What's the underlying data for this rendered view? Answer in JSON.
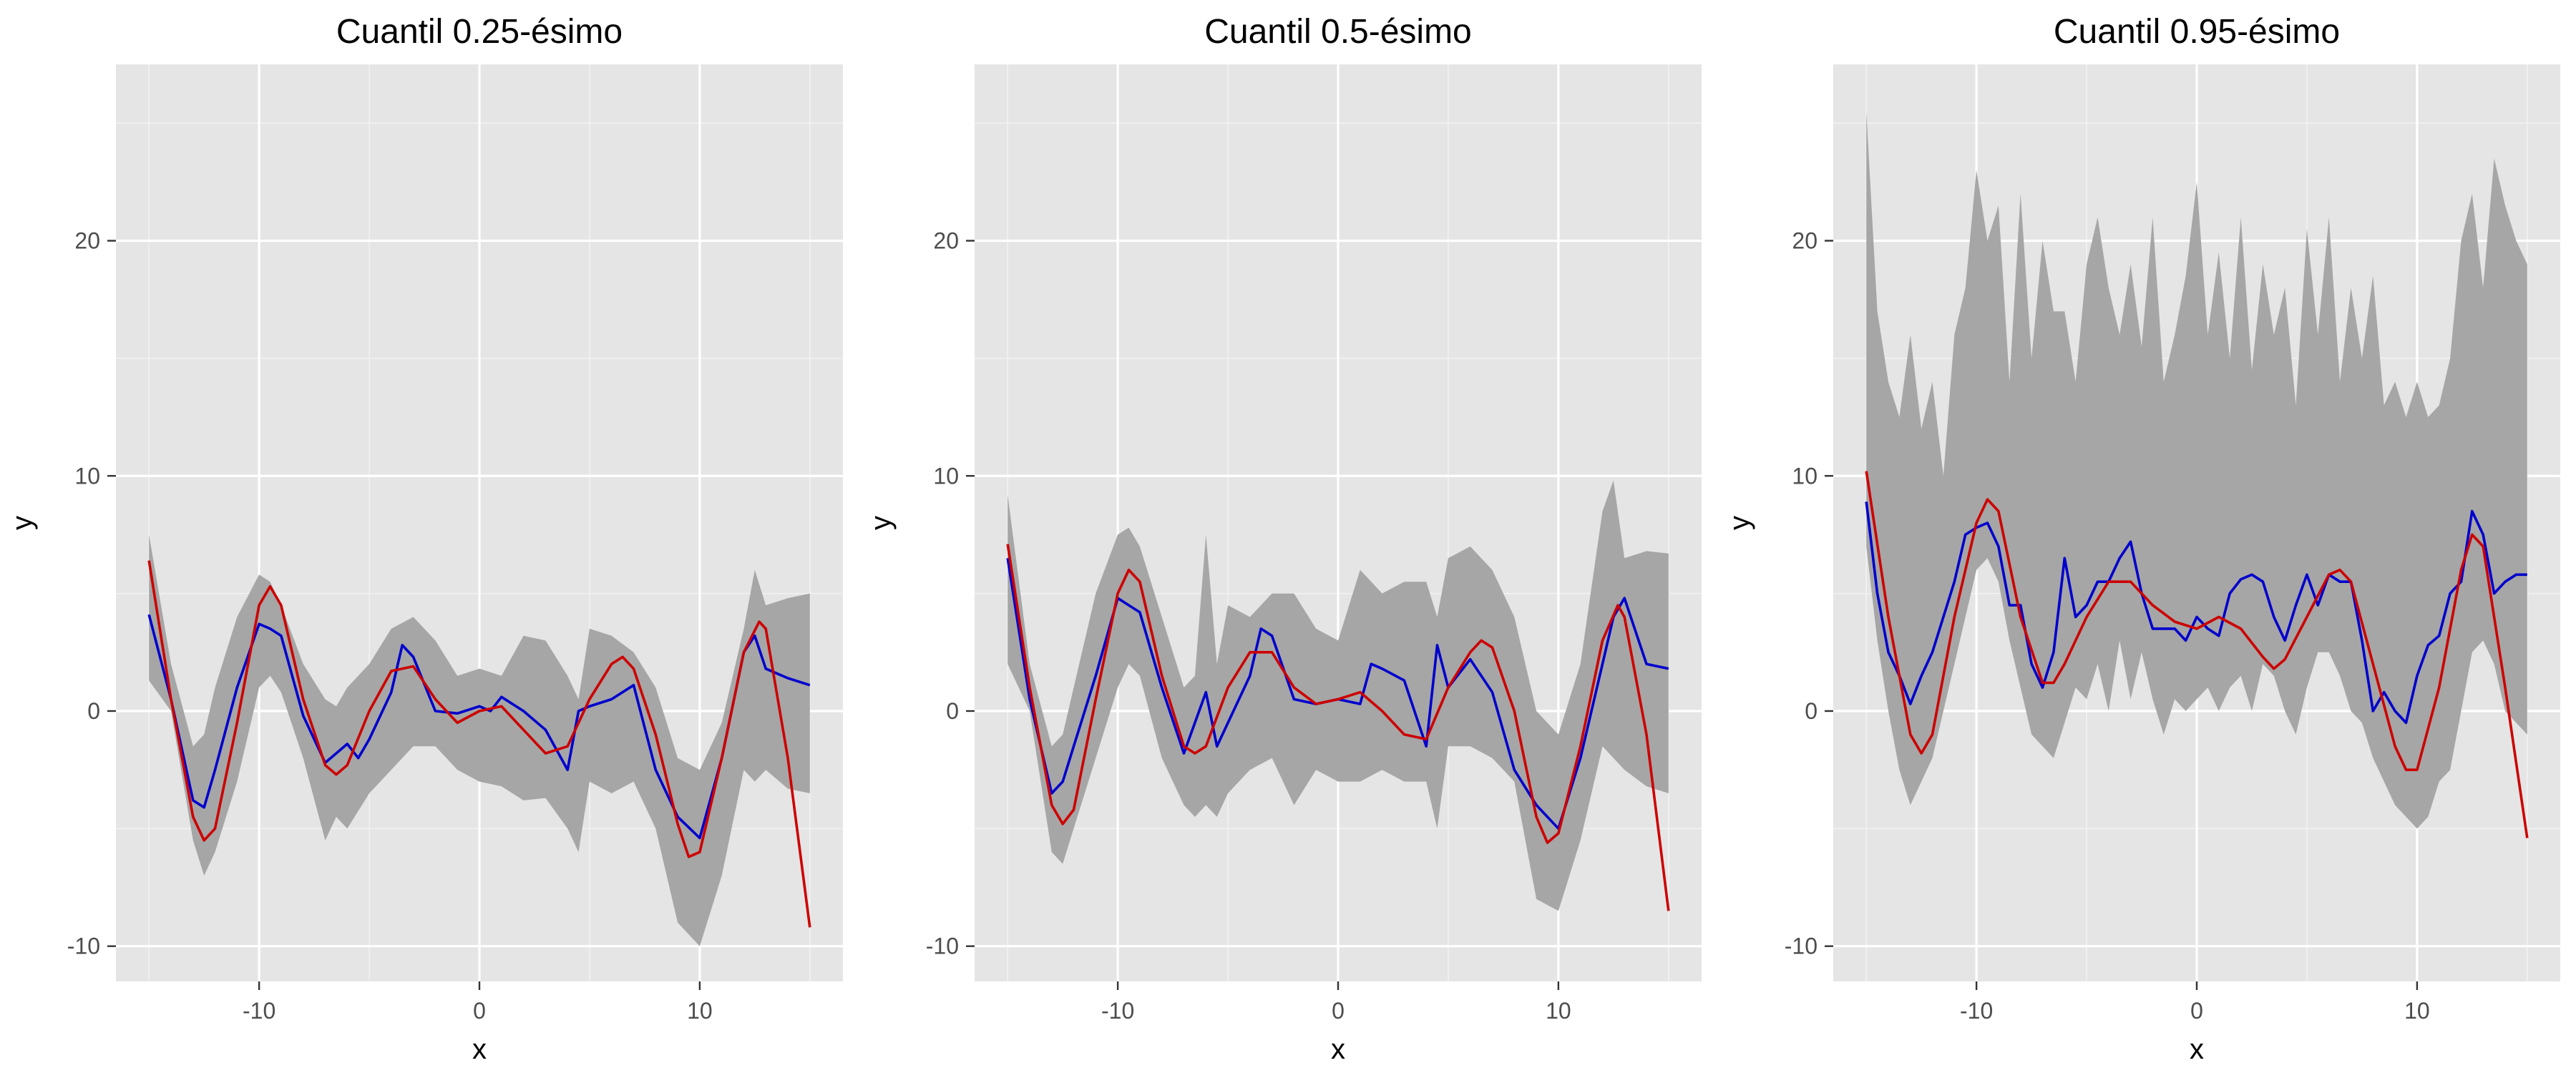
{
  "chart_data": [
    {
      "type": "line",
      "title": "Cuantil 0.25-ésimo",
      "xlabel": "x",
      "ylabel": "y",
      "xlim": [
        -16.5,
        16.5
      ],
      "ylim": [
        -11.5,
        27.5
      ],
      "x_ticks": [
        -10,
        0,
        10
      ],
      "y_ticks": [
        -10,
        0,
        10,
        20
      ],
      "grid": true,
      "series": [
        {
          "role": "band",
          "color": "#a6a6a6",
          "x": [
            -15,
            -14,
            -13,
            -12.5,
            -12,
            -11,
            -10,
            -9.5,
            -9,
            -8,
            -7,
            -6.5,
            -6,
            -5,
            -4,
            -3,
            -2,
            -1,
            0,
            1,
            2,
            3,
            4,
            4.5,
            5,
            6,
            7,
            8,
            9,
            10,
            11,
            12,
            12.5,
            13,
            14,
            15
          ],
          "upper": [
            7.5,
            2,
            -1.5,
            -1,
            1,
            4,
            5.8,
            5.5,
            4.5,
            2,
            0.5,
            0.2,
            1,
            2,
            3.5,
            4,
            3,
            1.5,
            1.8,
            1.5,
            3.2,
            3,
            1.5,
            0.5,
            3.5,
            3.2,
            2.5,
            1,
            -2,
            -2.5,
            -0.5,
            3.5,
            6,
            4.5,
            4.8,
            5
          ],
          "lower": [
            1.3,
            0,
            -5.5,
            -7,
            -6,
            -3,
            1,
            1.5,
            0.8,
            -2,
            -5.5,
            -4.5,
            -5,
            -3.5,
            -2.5,
            -1.5,
            -1.5,
            -2.5,
            -3,
            -3.2,
            -3.8,
            -3.7,
            -5,
            -6,
            -3,
            -3.5,
            -3,
            -5,
            -9,
            -10,
            -7,
            -2.5,
            -3,
            -2.5,
            -3.3,
            -3.5
          ]
        },
        {
          "role": "estimate",
          "color": "#0000cd",
          "x": [
            -15,
            -14,
            -13,
            -12.5,
            -12,
            -11,
            -10,
            -9.5,
            -9,
            -8,
            -7,
            -6.5,
            -6,
            -5.5,
            -5,
            -4,
            -3.5,
            -3,
            -2,
            -1,
            0,
            0.5,
            1,
            2,
            3,
            4,
            4.5,
            5,
            6,
            7,
            8,
            9,
            10,
            11,
            12,
            12.5,
            13,
            14,
            15
          ],
          "y": [
            4.1,
            0.5,
            -3.8,
            -4.1,
            -2.5,
            1,
            3.7,
            3.5,
            3.2,
            -0.2,
            -2.2,
            -1.8,
            -1.4,
            -2,
            -1.2,
            0.8,
            2.8,
            2.3,
            0,
            -0.1,
            0.2,
            0,
            0.6,
            0,
            -0.8,
            -2.5,
            0,
            0.2,
            0.5,
            1.1,
            -2.5,
            -4.5,
            -5.4,
            -2,
            2.5,
            3.2,
            1.8,
            1.4,
            1.1
          ]
        },
        {
          "role": "true",
          "color": "#cd0000",
          "x": [
            -15,
            -14,
            -13,
            -12.5,
            -12,
            -11,
            -10,
            -9.5,
            -9,
            -8,
            -7,
            -6.5,
            -6,
            -5,
            -4,
            -3,
            -2,
            -1,
            0,
            1,
            2,
            3,
            4,
            5,
            6,
            6.5,
            7,
            8,
            9,
            9.5,
            10,
            11,
            12,
            12.7,
            13,
            14,
            15
          ],
          "y": [
            6.4,
            0.5,
            -4.5,
            -5.5,
            -5,
            -0.5,
            4.5,
            5.3,
            4.5,
            0.5,
            -2.3,
            -2.7,
            -2.3,
            0,
            1.7,
            1.9,
            0.5,
            -0.5,
            0,
            0.2,
            -0.8,
            -1.8,
            -1.5,
            0.5,
            2,
            2.3,
            1.8,
            -1,
            -4.8,
            -6.2,
            -6,
            -2,
            2.5,
            3.8,
            3.5,
            -2,
            -9.2
          ]
        }
      ]
    },
    {
      "type": "line",
      "title": "Cuantil 0.5-ésimo",
      "xlabel": "x",
      "ylabel": "y",
      "xlim": [
        -16.5,
        16.5
      ],
      "ylim": [
        -11.5,
        27.5
      ],
      "x_ticks": [
        -10,
        0,
        10
      ],
      "y_ticks": [
        -10,
        0,
        10,
        20
      ],
      "grid": true,
      "series": [
        {
          "role": "band",
          "color": "#a6a6a6",
          "x": [
            -15,
            -14,
            -13,
            -12.5,
            -12,
            -11,
            -10,
            -9.5,
            -9,
            -8,
            -7,
            -6.5,
            -6,
            -5.5,
            -5,
            -4,
            -3,
            -2,
            -1,
            0,
            1,
            2,
            3,
            4,
            4.5,
            5,
            6,
            7,
            8,
            9,
            10,
            11,
            12,
            12.5,
            13,
            14,
            15
          ],
          "upper": [
            9.2,
            2,
            -1.5,
            -1,
            1,
            5,
            7.5,
            7.8,
            7,
            4,
            1,
            1.5,
            7.5,
            2,
            4.5,
            4,
            5,
            5,
            3.5,
            3,
            6,
            5,
            5.5,
            5.5,
            4,
            6.5,
            7,
            6,
            4,
            0,
            -1,
            2,
            8.5,
            9.8,
            6.5,
            6.8,
            6.7
          ],
          "lower": [
            2,
            0,
            -6,
            -6.5,
            -5,
            -2,
            1,
            2,
            1.5,
            -2,
            -4,
            -4.5,
            -4,
            -4.5,
            -3.5,
            -2.5,
            -2,
            -4,
            -2.5,
            -3,
            -3,
            -2.5,
            -3,
            -3,
            -5,
            -1.5,
            -1.5,
            -2,
            -3,
            -8,
            -8.5,
            -5.5,
            -1.5,
            -2,
            -2.5,
            -3.2,
            -3.5
          ]
        },
        {
          "role": "estimate",
          "color": "#0000cd",
          "x": [
            -15,
            -14,
            -13,
            -12.5,
            -12,
            -11,
            -10,
            -9.5,
            -9,
            -8,
            -7,
            -6.5,
            -6,
            -5.5,
            -5,
            -4,
            -3.5,
            -3,
            -2,
            -1,
            0,
            1,
            1.5,
            2,
            3,
            4,
            4.5,
            5,
            6,
            7,
            8,
            9,
            10,
            11,
            12,
            12.5,
            13,
            14,
            15
          ],
          "y": [
            6.5,
            0.5,
            -3.5,
            -3,
            -1.5,
            1.5,
            4.8,
            4.5,
            4.2,
            1,
            -1.8,
            -0.5,
            0.8,
            -1.5,
            -0.5,
            1.5,
            3.5,
            3.2,
            0.5,
            0.3,
            0.5,
            0.3,
            2,
            1.8,
            1.3,
            -1.5,
            2.8,
            1,
            2.2,
            0.8,
            -2.5,
            -4,
            -5,
            -2,
            2,
            4,
            4.8,
            2,
            1.8
          ]
        },
        {
          "role": "true",
          "color": "#cd0000",
          "x": [
            -15,
            -14,
            -13,
            -12.5,
            -12,
            -11,
            -10,
            -9.5,
            -9,
            -8,
            -7,
            -6.5,
            -6,
            -5,
            -4,
            -3,
            -2,
            -1,
            0,
            1,
            2,
            3,
            4,
            5,
            6,
            6.5,
            7,
            8,
            9,
            9.5,
            10,
            11,
            12,
            12.7,
            13,
            14,
            15
          ],
          "y": [
            7.1,
            1,
            -4,
            -4.8,
            -4.2,
            0.5,
            5,
            6,
            5.5,
            1.5,
            -1.5,
            -1.8,
            -1.5,
            1,
            2.5,
            2.5,
            1,
            0.3,
            0.5,
            0.8,
            0,
            -1,
            -1.2,
            1,
            2.5,
            3,
            2.7,
            0,
            -4.5,
            -5.6,
            -5.2,
            -1.5,
            3,
            4.5,
            4,
            -1,
            -8.5
          ]
        }
      ]
    },
    {
      "type": "line",
      "title": "Cuantil 0.95-ésimo",
      "xlabel": "x",
      "ylabel": "y",
      "xlim": [
        -16.5,
        16.5
      ],
      "ylim": [
        -11.5,
        27.5
      ],
      "x_ticks": [
        -10,
        0,
        10
      ],
      "y_ticks": [
        -10,
        0,
        10,
        20
      ],
      "grid": true,
      "series": [
        {
          "role": "band",
          "color": "#a6a6a6",
          "x": [
            -15,
            -14.5,
            -14,
            -13.5,
            -13,
            -12.5,
            -12,
            -11.5,
            -11,
            -10.5,
            -10,
            -9.5,
            -9,
            -8.5,
            -8,
            -7.5,
            -7,
            -6.5,
            -6,
            -5.5,
            -5,
            -4.5,
            -4,
            -3.5,
            -3,
            -2.5,
            -2,
            -1.5,
            -1,
            -0.5,
            0,
            0.5,
            1,
            1.5,
            2,
            2.5,
            3,
            3.5,
            4,
            4.5,
            5,
            5.5,
            6,
            6.5,
            7,
            7.5,
            8,
            8.5,
            9,
            9.5,
            10,
            10.5,
            11,
            11.5,
            12,
            12.5,
            13,
            13.5,
            14,
            14.5,
            15
          ],
          "upper": [
            25.5,
            17,
            14,
            12.5,
            16,
            12,
            14,
            10,
            16,
            18,
            23,
            20,
            21.5,
            14,
            22,
            15,
            20,
            17,
            17,
            14,
            19,
            21,
            18,
            16,
            19,
            15.5,
            21,
            14,
            16,
            18.5,
            22.5,
            16,
            19.5,
            15,
            21,
            14.5,
            19,
            16,
            18,
            13,
            20.5,
            16,
            21,
            14,
            18,
            15,
            18.5,
            13,
            14,
            12.5,
            14,
            12.5,
            13,
            15,
            20,
            22,
            18,
            23.5,
            21.5,
            20,
            19
          ],
          "lower": [
            7,
            3,
            0,
            -2.5,
            -4,
            -3,
            -2,
            0,
            2,
            4,
            6,
            6.5,
            5.5,
            3,
            1,
            -1,
            -1.5,
            -2,
            -0.5,
            1,
            0.5,
            2,
            0,
            3,
            0.5,
            2.5,
            0.5,
            -1,
            0.5,
            0,
            0.5,
            1,
            0,
            1,
            1.5,
            0,
            2,
            1.5,
            0,
            -1,
            1,
            2.5,
            2.5,
            1.5,
            0,
            -0.5,
            -2,
            -3,
            -4,
            -4.5,
            -5,
            -4.5,
            -3,
            -2.5,
            0,
            2.5,
            3,
            2,
            0,
            -0.5,
            -1
          ]
        },
        {
          "role": "estimate",
          "color": "#0000cd",
          "x": [
            -15,
            -14.5,
            -14,
            -13.5,
            -13,
            -12.5,
            -12,
            -11.5,
            -11,
            -10.5,
            -10,
            -9.5,
            -9,
            -8.5,
            -8,
            -7.5,
            -7,
            -6.5,
            -6,
            -5.5,
            -5,
            -4.5,
            -4,
            -3.5,
            -3,
            -2.5,
            -2,
            -1.5,
            -1,
            -0.5,
            0,
            0.5,
            1,
            1.5,
            2,
            2.5,
            3,
            3.5,
            4,
            4.5,
            5,
            5.5,
            6,
            6.5,
            7,
            7.5,
            8,
            8.5,
            9,
            9.5,
            10,
            10.5,
            11,
            11.5,
            12,
            12.5,
            13,
            13.5,
            14,
            14.5,
            15
          ],
          "y": [
            8.9,
            5,
            2.5,
            1.5,
            0.3,
            1.5,
            2.5,
            4,
            5.5,
            7.5,
            7.8,
            8,
            7,
            4.5,
            4.5,
            2,
            1,
            2.5,
            6.5,
            4,
            4.5,
            5.5,
            5.5,
            6.5,
            7.2,
            5,
            3.5,
            3.5,
            3.5,
            3,
            4,
            3.5,
            3.2,
            5,
            5.6,
            5.8,
            5.5,
            4,
            3,
            4.5,
            5.8,
            4.5,
            5.8,
            5.5,
            5.5,
            3,
            0,
            0.8,
            0,
            -0.5,
            1.5,
            2.8,
            3.2,
            5,
            5.5,
            8.5,
            7.5,
            5,
            5.5,
            5.8,
            5.8
          ]
        },
        {
          "role": "true",
          "color": "#cd0000",
          "x": [
            -15,
            -14,
            -13,
            -12.5,
            -12,
            -11,
            -10,
            -9.5,
            -9,
            -8,
            -7,
            -6.5,
            -6,
            -5,
            -4,
            -3,
            -2,
            -1,
            0,
            1,
            2,
            3,
            3.5,
            4,
            5,
            6,
            6.5,
            7,
            8,
            9,
            9.5,
            10,
            11,
            12,
            12.5,
            13,
            14,
            15
          ],
          "y": [
            10.2,
            4,
            -1,
            -1.8,
            -1,
            4,
            8,
            9,
            8.5,
            4,
            1.2,
            1.2,
            2,
            4,
            5.5,
            5.5,
            4.5,
            3.8,
            3.5,
            4,
            3.5,
            2.3,
            1.8,
            2.2,
            4,
            5.8,
            6,
            5.5,
            2,
            -1.5,
            -2.5,
            -2.5,
            1,
            6,
            7.5,
            7,
            1,
            -5.4
          ]
        }
      ]
    }
  ]
}
